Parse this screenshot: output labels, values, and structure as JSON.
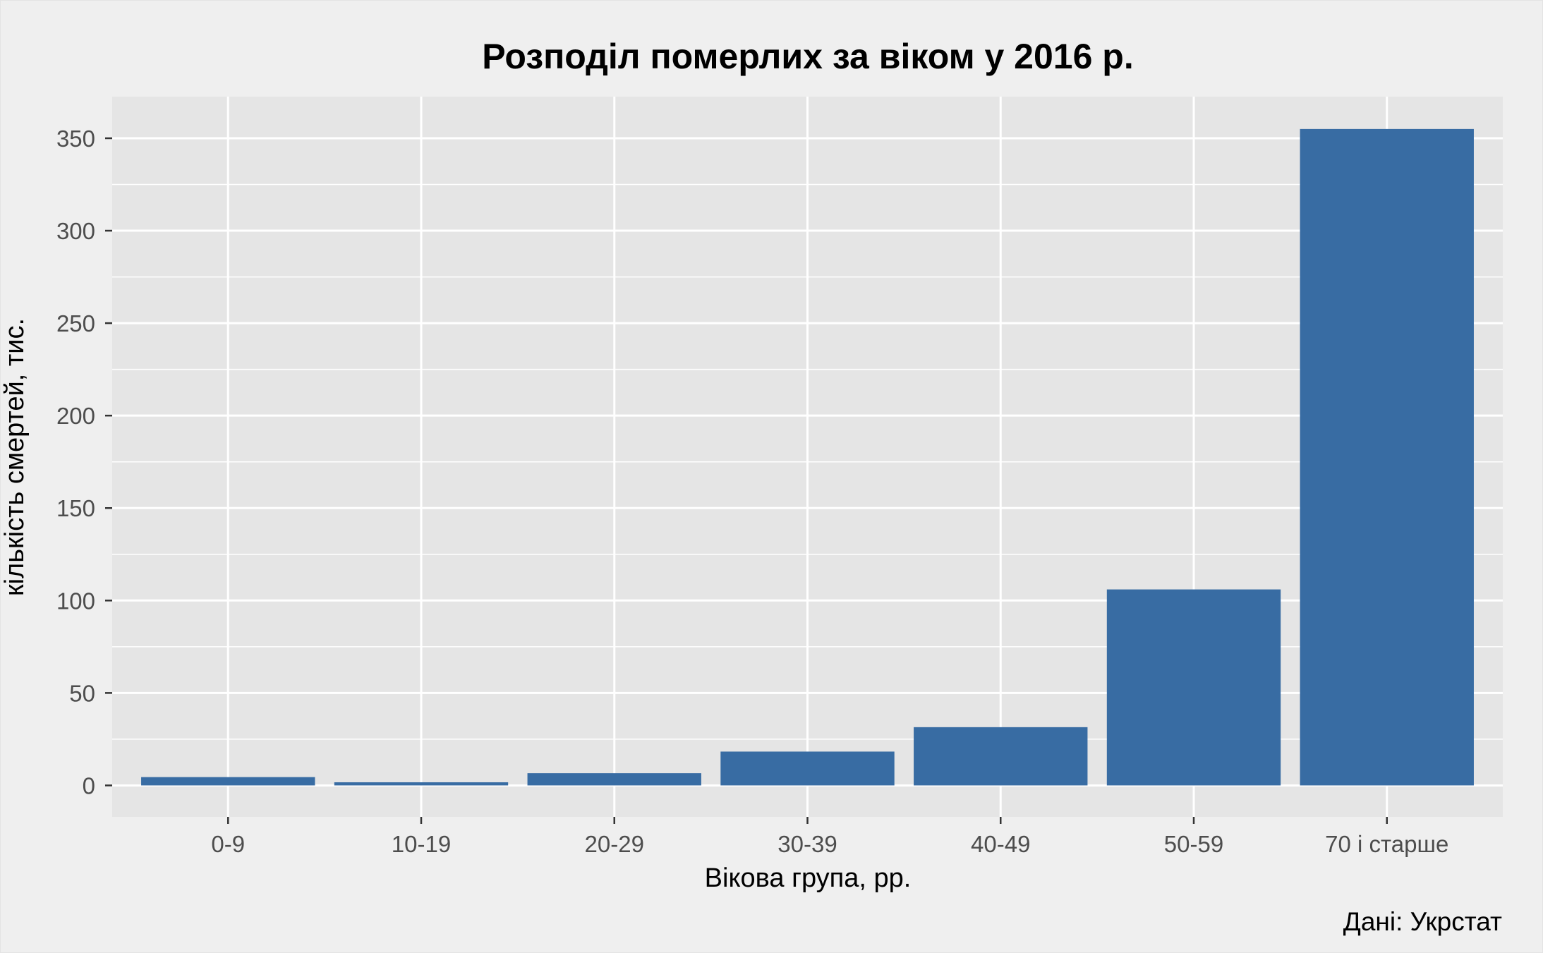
{
  "chart_data": {
    "type": "bar",
    "title": "Розподіл померлих за віком у 2016 р.",
    "xlabel": "Вікова група, рр.",
    "ylabel": "кількість смертей, тис.",
    "caption": "Дані: Укрстат",
    "categories": [
      "0-9",
      "10-19",
      "20-29",
      "30-39",
      "40-49",
      "50-59",
      "70 і старше"
    ],
    "values": [
      4.5,
      1.7,
      6.6,
      18.3,
      31.5,
      106,
      355
    ],
    "ylim": [
      -17,
      372.5
    ],
    "yticks": [
      0,
      50,
      100,
      150,
      200,
      250,
      300,
      350
    ],
    "grid": true,
    "legend": "none",
    "colors": {
      "bar": "#386ca3",
      "panel": "#e5e5e5",
      "background": "#efefef",
      "grid_major": "#ffffff",
      "tick_text": "#4d4d4d"
    }
  }
}
